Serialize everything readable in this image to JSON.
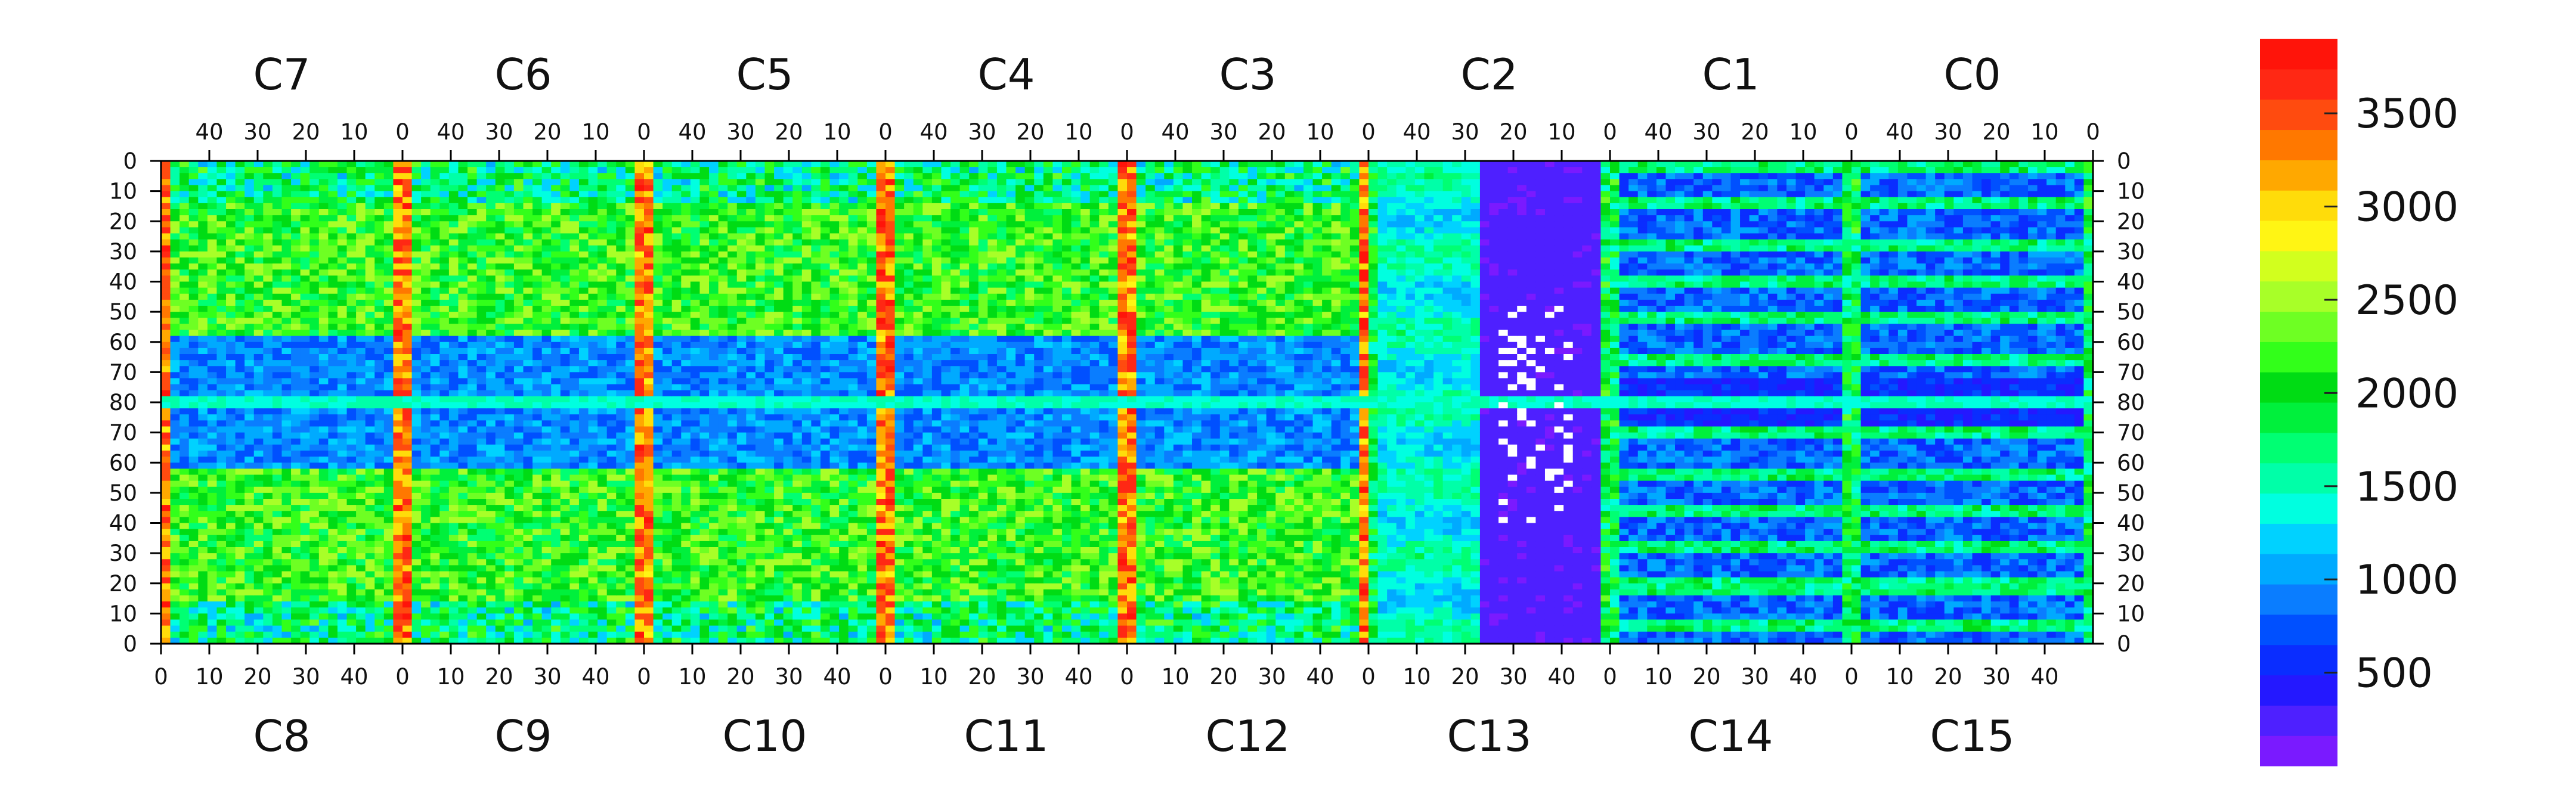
{
  "chart_data": {
    "type": "heatmap",
    "title": "",
    "xlabel": "",
    "ylabel": "",
    "grid": false,
    "legend_placement": "right (color scale)",
    "top_chips": [
      "C7",
      "C6",
      "C5",
      "C4",
      "C3",
      "C2",
      "C1",
      "C0"
    ],
    "bottom_chips": [
      "C8",
      "C9",
      "C10",
      "C11",
      "C12",
      "C13",
      "C14",
      "C15"
    ],
    "top_x_ticks": [
      "40",
      "30",
      "20",
      "10",
      "0"
    ],
    "bottom_x_ticks": [
      "0",
      "10",
      "20",
      "30",
      "40"
    ],
    "y_ticks_top_half": [
      "0",
      "10",
      "20",
      "30",
      "40",
      "50",
      "60",
      "70",
      "80"
    ],
    "y_ticks_bottom_half": [
      "70",
      "60",
      "50",
      "40",
      "30",
      "20",
      "10",
      "0"
    ],
    "columns_per_chip": 52,
    "rows_per_chip": 80,
    "z_range": [
      0,
      3900
    ],
    "z_ticks": [
      "500",
      "1000",
      "1500",
      "2000",
      "2500",
      "3000",
      "3500"
    ],
    "z_tick_values": [
      500,
      1000,
      1500,
      2000,
      2500,
      3000,
      3500
    ],
    "colors": {
      "palette": [
        "#7a1aff",
        "#4e20ff",
        "#2418ff",
        "#0a2dff",
        "#0050ff",
        "#0a7dff",
        "#00aaff",
        "#00d2ff",
        "#00ffe0",
        "#00ffa8",
        "#00ff73",
        "#00f03c",
        "#00dc14",
        "#32ff1a",
        "#6eff23",
        "#a8ff28",
        "#d2ff1e",
        "#fff514",
        "#ffdc0a",
        "#ffa800",
        "#ff7800",
        "#ff4b0f",
        "#ff2814",
        "#ff140a"
      ],
      "dead_pixel": "#ffffff"
    },
    "approximate_features": [
      {
        "chips": "all",
        "description": "hot (red/yellow) column near column 0 of each chip boundary"
      },
      {
        "chips": "C13",
        "description": "large low-response (purple) region with scattered white dead pixels"
      },
      {
        "chips": "C1,C14,C0,C15",
        "description": "horizontal striping, lower mean response"
      }
    ]
  }
}
